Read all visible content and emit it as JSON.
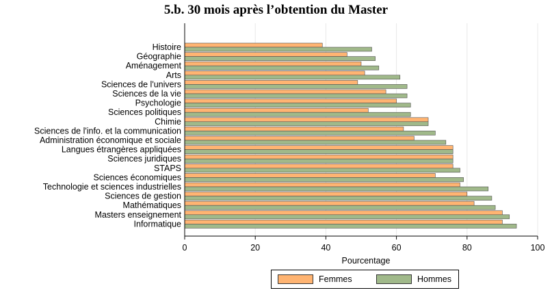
{
  "chart_data": {
    "type": "bar",
    "orientation": "horizontal",
    "title": "5.b. 30 mois après l’obtention du Master",
    "xlabel": "Pourcentage",
    "xlim": [
      0,
      100
    ],
    "xticks": [
      "0",
      "20",
      "40",
      "60",
      "80",
      "100"
    ],
    "grid": true,
    "legend_position": "bottom",
    "categories": [
      "Histoire",
      "Géographie",
      "Aménagement",
      "Arts",
      "Sciences de l'univers",
      "Sciences de la vie",
      "Psychologie",
      "Sciences politiques",
      "Chimie",
      "Sciences de l'info. et la communication",
      "Administration économique et sociale",
      "Langues étrangères appliquées",
      "Sciences juridiques",
      "STAPS",
      "Sciences économiques",
      "Technologie et sciences industrielles",
      "Sciences de gestion",
      "Mathématiques",
      "Masters enseignement",
      "Informatique"
    ],
    "series": [
      {
        "name": "Femmes",
        "color": "#ffb472",
        "values": [
          39,
          46,
          50,
          51,
          49,
          57,
          60,
          52,
          69,
          62,
          65,
          76,
          76,
          76,
          71,
          78,
          80,
          82,
          90,
          90
        ]
      },
      {
        "name": "Hommes",
        "color": "#a0b98a",
        "values": [
          53,
          54,
          55,
          61,
          63,
          63,
          64,
          64,
          69,
          71,
          74,
          76,
          76,
          78,
          79,
          86,
          87,
          88,
          92,
          94
        ]
      }
    ]
  }
}
